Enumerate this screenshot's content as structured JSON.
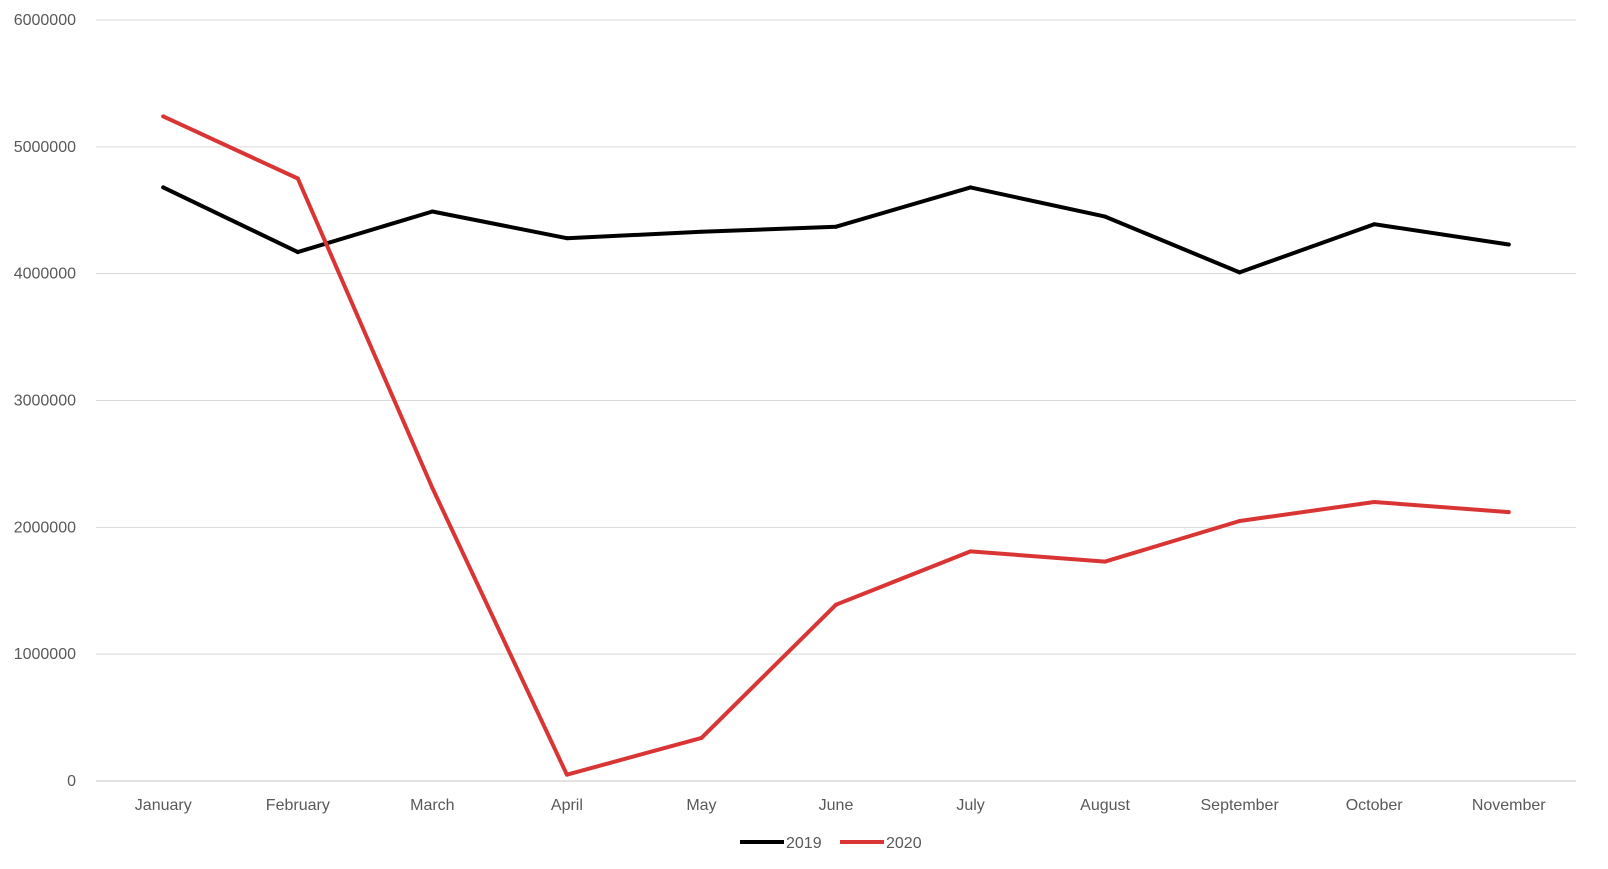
{
  "chart_data": {
    "type": "line",
    "title": "",
    "xlabel": "",
    "ylabel": "",
    "categories": [
      "January",
      "February",
      "March",
      "April",
      "May",
      "June",
      "July",
      "August",
      "September",
      "October",
      "November"
    ],
    "ylim": [
      0,
      6000000
    ],
    "yticks": [
      0,
      1000000,
      2000000,
      3000000,
      4000000,
      5000000,
      6000000
    ],
    "ytick_labels": [
      "0",
      "1000000",
      "2000000",
      "3000000",
      "4000000",
      "5000000",
      "6000000"
    ],
    "grid": "horizontal",
    "legend_position": "bottom",
    "series": [
      {
        "name": "2019",
        "color": "#000000",
        "values": [
          4680000,
          4170000,
          4490000,
          4280000,
          4330000,
          4370000,
          4680000,
          4450000,
          4010000,
          4390000,
          4230000
        ]
      },
      {
        "name": "2020",
        "color": "#d93535",
        "values": [
          5240000,
          4750000,
          2310000,
          50000,
          340000,
          1390000,
          1810000,
          1730000,
          2050000,
          2200000,
          2120000
        ]
      }
    ]
  }
}
